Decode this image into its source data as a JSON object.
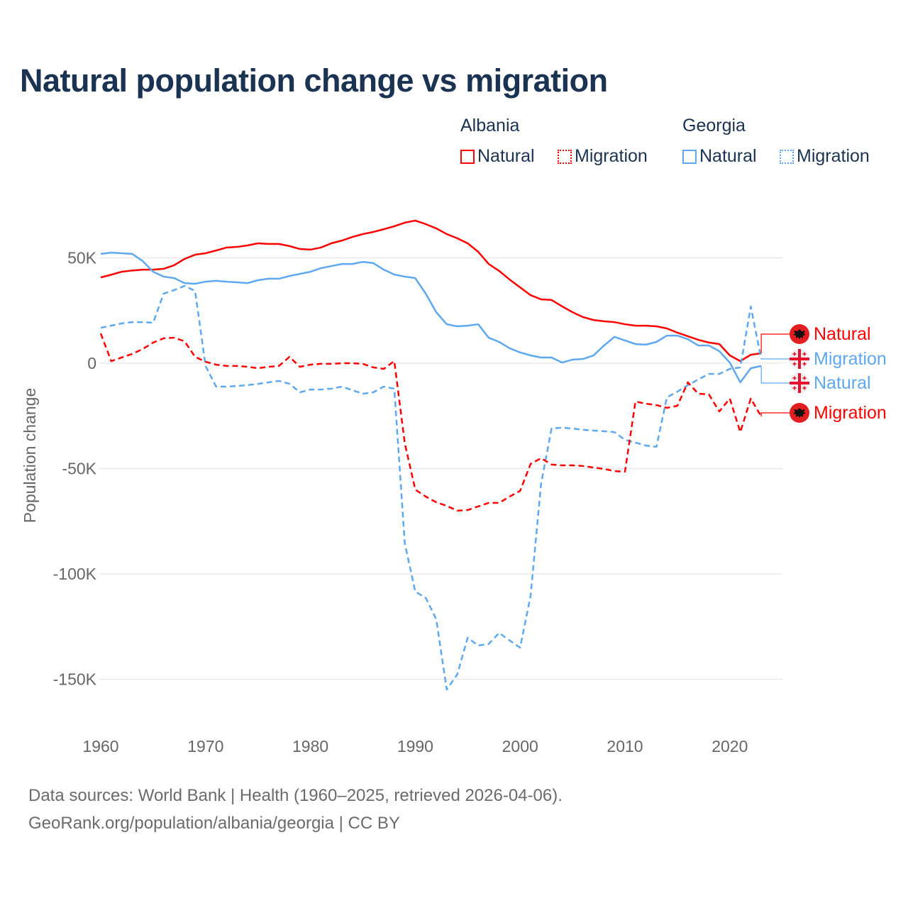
{
  "title": "Natural population change vs migration",
  "legend": {
    "groups": [
      {
        "name": "Albania",
        "items": [
          {
            "label": "Natural",
            "style": "solid"
          },
          {
            "label": "Migration",
            "style": "dotted"
          }
        ],
        "color": "#ff0000"
      },
      {
        "name": "Georgia",
        "items": [
          {
            "label": "Natural",
            "style": "solid"
          },
          {
            "label": "Migration",
            "style": "dotted"
          }
        ],
        "color": "#5ea8ef"
      }
    ]
  },
  "footer": {
    "line1": "Data sources: World Bank | Health (1960–2025, retrieved 2026-04-06).",
    "line2": "GeoRank.org/population/albania/georgia | CC BY"
  },
  "chart_data": {
    "type": "line",
    "title": "Natural population change vs migration",
    "xlabel": "",
    "ylabel": "Population change",
    "xlim": [
      1960,
      2025
    ],
    "ylim": [
      -165000,
      75000
    ],
    "grid": true,
    "legend_position": "top-right",
    "x_ticks": [
      1960,
      1970,
      1980,
      1990,
      2000,
      2010,
      2020
    ],
    "x_tick_labels": [
      "1960",
      "1970",
      "1980",
      "1990",
      "2000",
      "2010",
      "2020"
    ],
    "y_ticks": [
      50000,
      0,
      -50000,
      -100000,
      -150000
    ],
    "y_tick_labels": [
      "50K",
      "0",
      "-50K",
      "-100K",
      "-150K"
    ],
    "x_start": 1960,
    "series": [
      {
        "name": "Albania Natural",
        "country": "Albania",
        "label": "Natural",
        "flag": "albania-flag",
        "color": "#ff0000",
        "dash": "solid",
        "values": [
          40.7,
          42,
          43.4,
          44,
          44.4,
          44.4,
          44.8,
          46.5,
          49.5,
          51.5,
          52.2,
          53.5,
          54.9,
          55.2,
          55.9,
          56.9,
          56.6,
          56.6,
          55.6,
          54.2,
          53.9,
          54.9,
          56.9,
          58.2,
          59.9,
          61.3,
          62.3,
          63.6,
          65,
          66.7,
          67.7,
          66,
          64,
          61.3,
          59.3,
          56.9,
          52.9,
          47.1,
          43.8,
          39.7,
          36,
          32.3,
          30.3,
          30,
          27,
          24.2,
          21.9,
          20.5,
          19.9,
          19.5,
          18.5,
          17.8,
          17.8,
          17.5,
          16.5,
          14.5,
          12.8,
          11.1,
          9.8,
          9.1,
          3.7,
          1,
          4,
          4.7
        ]
      },
      {
        "name": "Georgia Migration",
        "country": "Georgia",
        "label": "Migration",
        "flag": "georgia-flag",
        "color": "#5ea8ef",
        "dash": "dashed",
        "values": [
          16.8,
          17.8,
          18.9,
          19.5,
          19.5,
          19.2,
          33,
          34.7,
          36.7,
          34.3,
          -1.3,
          -11.1,
          -11.1,
          -10.8,
          -10.4,
          -9.8,
          -9.1,
          -8.4,
          -9.8,
          -13.8,
          -12.5,
          -12.5,
          -12.1,
          -11.1,
          -12.8,
          -14.5,
          -13.8,
          -11.1,
          -12.1,
          -85.5,
          -108.4,
          -111.4,
          -121.5,
          -154.9,
          -147.8,
          -130.3,
          -134,
          -133.3,
          -128,
          -131.6,
          -135,
          -110.4,
          -57.2,
          -31,
          -30.6,
          -31,
          -31.6,
          -32,
          -32.3,
          -32.7,
          -36.4,
          -37.7,
          -39.1,
          -39.7,
          -16.2,
          -13.5,
          -10.4,
          -7.7,
          -5.1,
          -5.1,
          -2.7,
          -2,
          26.9,
          2
        ]
      },
      {
        "name": "Georgia Natural",
        "country": "Georgia",
        "label": "Natural",
        "flag": "georgia-flag",
        "color": "#5ea8ef",
        "dash": "solid",
        "values": [
          51.9,
          52.5,
          52.2,
          51.9,
          48.5,
          43.4,
          41.1,
          40.4,
          38,
          37.7,
          38.7,
          39.1,
          38.7,
          38.4,
          38,
          39.4,
          40.1,
          40.1,
          41.4,
          42.4,
          43.4,
          45.1,
          46.1,
          47.1,
          47.1,
          48.1,
          47.5,
          44.4,
          42.1,
          41.1,
          40.4,
          33,
          24.2,
          18.5,
          17.5,
          17.8,
          18.5,
          12.1,
          10.1,
          7.1,
          5.1,
          3.7,
          2.7,
          2.7,
          0.3,
          1.7,
          2,
          3.7,
          8.4,
          12.5,
          10.8,
          9.1,
          8.8,
          10.1,
          13.1,
          13.1,
          11.4,
          8.4,
          8.4,
          5.7,
          0.3,
          -9.1,
          -2.4,
          -1.3
        ]
      },
      {
        "name": "Albania Migration",
        "country": "Albania",
        "label": "Migration",
        "flag": "albania-flag",
        "color": "#ff0000",
        "dash": "dashed",
        "values": [
          14.1,
          1,
          2.7,
          4.4,
          6.7,
          9.8,
          11.8,
          12.1,
          10.4,
          3,
          0.7,
          -0.7,
          -1.3,
          -1.3,
          -1.7,
          -2.4,
          -1.7,
          -1.3,
          3,
          -1.7,
          -0.7,
          -0.3,
          -0.3,
          0,
          0,
          -0.3,
          -2,
          -2.7,
          1,
          -38,
          -60,
          -63.3,
          -66,
          -67.7,
          -70,
          -69.7,
          -68,
          -66.3,
          -66.3,
          -63.3,
          -60.6,
          -47.8,
          -45.1,
          -48.1,
          -48.5,
          -48.5,
          -48.8,
          -49.5,
          -50.2,
          -51.2,
          -51.5,
          -18.2,
          -19.2,
          -19.9,
          -21.2,
          -20.2,
          -9.1,
          -14.5,
          -14.8,
          -22.9,
          -16.8,
          -32.7,
          -16.8,
          -25.3
        ]
      }
    ],
    "value_units": "thousands"
  }
}
